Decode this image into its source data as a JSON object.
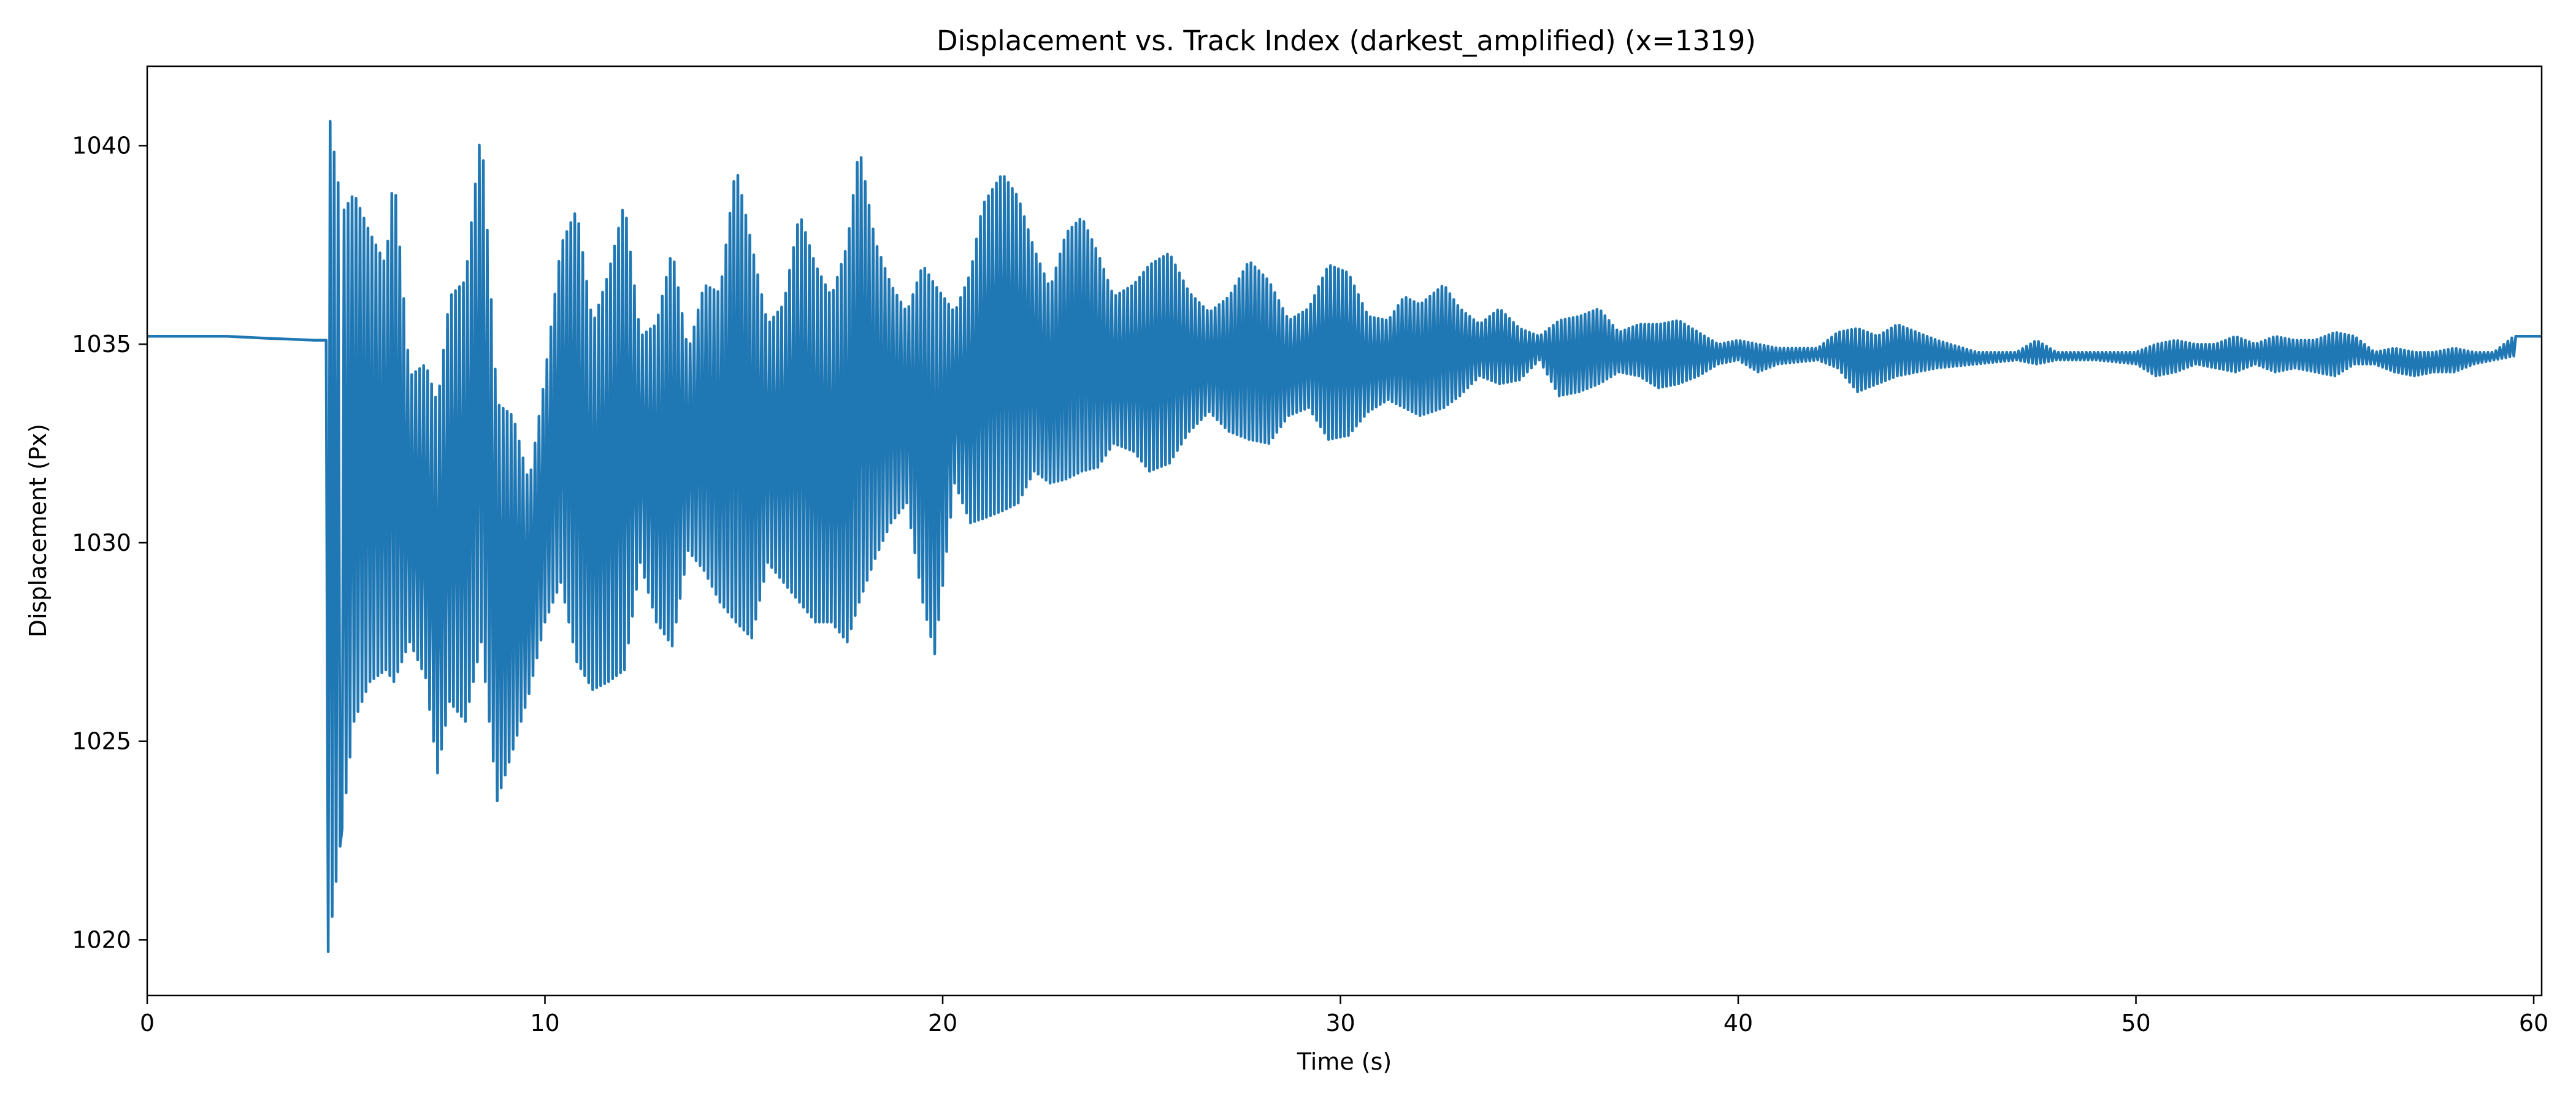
{
  "chart_data": {
    "type": "line",
    "title": "Displacement vs. Track Index (darkest_amplified) (x=1319)",
    "xlabel": "Time (s)",
    "ylabel": "Displacement (Px)",
    "xlim": [
      0,
      60.2
    ],
    "ylim": [
      1018.6,
      1042
    ],
    "xticks": [
      0,
      10,
      20,
      30,
      40,
      50,
      60
    ],
    "yticks": [
      1020,
      1025,
      1030,
      1035,
      1040
    ],
    "grid": false,
    "legend": "none",
    "series": [
      {
        "color": "#1f77b4",
        "baseline": [
          [
            0,
            1035.2
          ],
          [
            2,
            1035.2
          ],
          [
            3,
            1035.15
          ],
          [
            4.2,
            1035.1
          ],
          [
            4.5,
            1035.1
          ]
        ],
        "envelope": [
          [
            4.55,
            1019.7,
            1041.0
          ],
          [
            4.9,
            1022.8,
            1038.3
          ],
          [
            5.2,
            1025.5,
            1038.8
          ],
          [
            5.6,
            1026.5,
            1037.8
          ],
          [
            6.0,
            1026.8,
            1037.0
          ],
          [
            6.2,
            1026.5,
            1039.4
          ],
          [
            6.6,
            1027.5,
            1034.2
          ],
          [
            7.0,
            1026.6,
            1034.5
          ],
          [
            7.3,
            1024.2,
            1033.5
          ],
          [
            7.6,
            1026.0,
            1036.2
          ],
          [
            8.0,
            1025.5,
            1036.6
          ],
          [
            8.4,
            1027.5,
            1040.5
          ],
          [
            8.8,
            1023.5,
            1033.5
          ],
          [
            9.2,
            1024.8,
            1033.2
          ],
          [
            9.6,
            1026.2,
            1031.5
          ],
          [
            10.0,
            1028.0,
            1034.2
          ],
          [
            10.4,
            1029.0,
            1037.5
          ],
          [
            10.8,
            1027.0,
            1038.4
          ],
          [
            11.2,
            1026.3,
            1035.5
          ],
          [
            11.6,
            1026.5,
            1036.8
          ],
          [
            12.0,
            1026.8,
            1038.6
          ],
          [
            12.4,
            1029.5,
            1035.2
          ],
          [
            12.8,
            1028.0,
            1035.5
          ],
          [
            13.2,
            1027.4,
            1037.4
          ],
          [
            13.6,
            1029.8,
            1034.8
          ],
          [
            14.0,
            1029.3,
            1036.5
          ],
          [
            14.4,
            1028.5,
            1036.3
          ],
          [
            14.8,
            1028.0,
            1039.5
          ],
          [
            15.2,
            1027.6,
            1037.5
          ],
          [
            15.6,
            1029.5,
            1035.5
          ],
          [
            16.0,
            1029.0,
            1036.0
          ],
          [
            16.4,
            1028.5,
            1038.3
          ],
          [
            16.8,
            1028.0,
            1037.0
          ],
          [
            17.2,
            1028.0,
            1036.2
          ],
          [
            17.6,
            1027.5,
            1037.5
          ],
          [
            17.9,
            1028.5,
            1040.0
          ],
          [
            18.3,
            1029.6,
            1037.6
          ],
          [
            18.7,
            1030.5,
            1036.5
          ],
          [
            19.1,
            1031.0,
            1035.8
          ],
          [
            19.5,
            1028.5,
            1037.0
          ],
          [
            19.8,
            1027.2,
            1036.5
          ],
          [
            20.3,
            1031.5,
            1035.8
          ],
          [
            20.7,
            1030.5,
            1036.8
          ],
          [
            21.0,
            1030.6,
            1038.5
          ],
          [
            21.5,
            1030.8,
            1039.3
          ],
          [
            21.9,
            1031.0,
            1038.7
          ],
          [
            22.3,
            1031.8,
            1037.4
          ],
          [
            22.7,
            1031.5,
            1036.4
          ],
          [
            23.1,
            1031.6,
            1037.8
          ],
          [
            23.5,
            1031.8,
            1038.2
          ],
          [
            23.9,
            1031.9,
            1037.3
          ],
          [
            24.3,
            1032.5,
            1036.2
          ],
          [
            24.8,
            1032.3,
            1036.5
          ],
          [
            25.2,
            1031.8,
            1037.0
          ],
          [
            25.7,
            1032.0,
            1037.3
          ],
          [
            26.2,
            1032.8,
            1036.3
          ],
          [
            26.7,
            1033.3,
            1035.8
          ],
          [
            27.2,
            1032.8,
            1036.2
          ],
          [
            27.7,
            1032.6,
            1037.1
          ],
          [
            28.2,
            1032.5,
            1036.6
          ],
          [
            28.7,
            1033.2,
            1035.6
          ],
          [
            29.2,
            1033.4,
            1035.9
          ],
          [
            29.7,
            1032.6,
            1037.0
          ],
          [
            30.2,
            1032.7,
            1036.8
          ],
          [
            30.7,
            1033.3,
            1035.7
          ],
          [
            31.2,
            1033.6,
            1035.6
          ],
          [
            31.6,
            1033.4,
            1036.2
          ],
          [
            32.0,
            1033.2,
            1036.0
          ],
          [
            32.6,
            1033.4,
            1036.5
          ],
          [
            33.0,
            1033.7,
            1035.9
          ],
          [
            33.5,
            1034.2,
            1035.5
          ],
          [
            34.0,
            1034.0,
            1035.9
          ],
          [
            34.5,
            1034.1,
            1035.4
          ],
          [
            35.0,
            1034.6,
            1035.2
          ],
          [
            35.5,
            1033.7,
            1035.6
          ],
          [
            36.0,
            1033.8,
            1035.7
          ],
          [
            36.5,
            1034.0,
            1035.9
          ],
          [
            37.0,
            1034.3,
            1035.3
          ],
          [
            37.5,
            1034.2,
            1035.5
          ],
          [
            38.0,
            1033.9,
            1035.5
          ],
          [
            38.5,
            1034.0,
            1035.6
          ],
          [
            39.0,
            1034.2,
            1035.3
          ],
          [
            39.5,
            1034.5,
            1035.0
          ],
          [
            40.0,
            1034.6,
            1035.1
          ],
          [
            40.5,
            1034.3,
            1035.0
          ],
          [
            41.0,
            1034.5,
            1034.9
          ],
          [
            42.0,
            1034.6,
            1034.9
          ],
          [
            42.5,
            1034.4,
            1035.3
          ],
          [
            43.0,
            1033.8,
            1035.4
          ],
          [
            43.5,
            1034.0,
            1035.2
          ],
          [
            44.0,
            1034.2,
            1035.5
          ],
          [
            44.5,
            1034.3,
            1035.3
          ],
          [
            45.0,
            1034.4,
            1035.1
          ],
          [
            46.0,
            1034.5,
            1034.8
          ],
          [
            47.0,
            1034.6,
            1034.8
          ],
          [
            47.5,
            1034.5,
            1035.1
          ],
          [
            48.0,
            1034.6,
            1034.8
          ],
          [
            49.0,
            1034.6,
            1034.8
          ],
          [
            50.0,
            1034.5,
            1034.8
          ],
          [
            50.5,
            1034.2,
            1035.0
          ],
          [
            51.0,
            1034.3,
            1035.1
          ],
          [
            51.5,
            1034.5,
            1035.0
          ],
          [
            52.0,
            1034.4,
            1035.0
          ],
          [
            52.5,
            1034.3,
            1035.2
          ],
          [
            53.0,
            1034.5,
            1035.0
          ],
          [
            53.5,
            1034.3,
            1035.2
          ],
          [
            54.0,
            1034.4,
            1035.1
          ],
          [
            54.5,
            1034.3,
            1035.1
          ],
          [
            55.0,
            1034.2,
            1035.3
          ],
          [
            55.5,
            1034.5,
            1035.2
          ],
          [
            56.0,
            1034.5,
            1034.8
          ],
          [
            56.5,
            1034.3,
            1034.9
          ],
          [
            57.0,
            1034.2,
            1034.8
          ],
          [
            57.5,
            1034.3,
            1034.8
          ],
          [
            58.0,
            1034.3,
            1034.9
          ],
          [
            58.5,
            1034.5,
            1034.8
          ],
          [
            59.0,
            1034.6,
            1034.8
          ],
          [
            59.5,
            1034.7,
            1035.2
          ]
        ],
        "tail": [
          [
            59.6,
            1035.2
          ],
          [
            60.2,
            1035.2
          ]
        ]
      }
    ]
  }
}
